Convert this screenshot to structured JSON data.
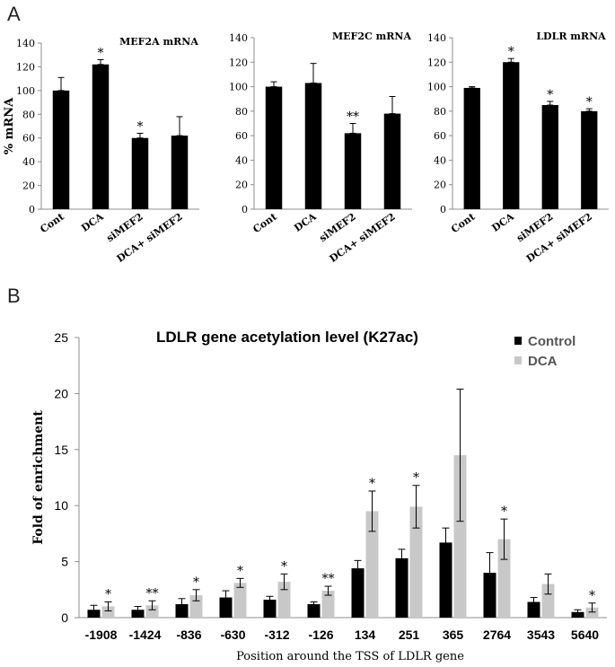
{
  "figure": {
    "panel_a_label": "A",
    "panel_b_label": "B"
  },
  "colors": {
    "control": "#000000",
    "dca": "#c8c8c8",
    "axis": "#8c8c8c"
  },
  "chart_data": [
    {
      "type": "bar",
      "title": "MEF2A mRNA",
      "ylabel": "% mRNA",
      "xlabel": "",
      "ylim": [
        0,
        140
      ],
      "yticks": [
        0,
        20,
        40,
        60,
        80,
        100,
        120,
        140
      ],
      "categories": [
        "Cont",
        "DCA",
        "siMEF2",
        "DCA+ siMEF2"
      ],
      "values": [
        100,
        122,
        60,
        62
      ],
      "errors": [
        11,
        4,
        4,
        16
      ],
      "significance": [
        "",
        "*",
        "*",
        ""
      ]
    },
    {
      "type": "bar",
      "title": "MEF2C mRNA",
      "ylabel": "",
      "xlabel": "",
      "ylim": [
        0,
        140
      ],
      "yticks": [
        0,
        20,
        40,
        60,
        80,
        100,
        120,
        140
      ],
      "categories": [
        "Cont",
        "DCA",
        "siMEF2",
        "DCA+ siMEF2"
      ],
      "values": [
        100,
        103,
        62,
        78
      ],
      "errors": [
        4,
        16,
        8,
        14
      ],
      "significance": [
        "",
        "",
        "**",
        ""
      ]
    },
    {
      "type": "bar",
      "title": "LDLR mRNA",
      "ylabel": "",
      "xlabel": "",
      "ylim": [
        0,
        140
      ],
      "yticks": [
        0,
        20,
        40,
        60,
        80,
        100,
        120,
        140
      ],
      "categories": [
        "Cont",
        "DCA",
        "siMEF2",
        "DCA+ siMEF2"
      ],
      "values": [
        99,
        120,
        85,
        80
      ],
      "errors": [
        1,
        3,
        3,
        2
      ],
      "significance": [
        "",
        "*",
        "*",
        "*"
      ]
    },
    {
      "type": "bar",
      "title": "LDLR gene acetylation level (K27ac)",
      "xlabel": "Position around the TSS of LDLR gene",
      "ylabel": "Fold of enrichment",
      "ylim": [
        0,
        25
      ],
      "yticks": [
        0,
        5,
        10,
        15,
        20,
        25
      ],
      "legend_position": "top-right",
      "categories": [
        "-1908",
        "-1424",
        "-836",
        "-630",
        "-312",
        "-126",
        "134",
        "251",
        "365",
        "2764",
        "3543",
        "5640"
      ],
      "series": [
        {
          "name": "Control",
          "values": [
            0.7,
            0.7,
            1.2,
            1.8,
            1.6,
            1.2,
            4.4,
            5.3,
            6.7,
            4.0,
            1.4,
            0.5
          ],
          "errors": [
            0.4,
            0.3,
            0.5,
            0.6,
            0.3,
            0.2,
            0.7,
            0.8,
            1.3,
            1.8,
            0.4,
            0.2
          ]
        },
        {
          "name": "DCA",
          "values": [
            1.0,
            1.1,
            2.0,
            3.1,
            3.2,
            2.4,
            9.5,
            9.9,
            14.5,
            7.0,
            3.0,
            0.9
          ],
          "errors": [
            0.4,
            0.4,
            0.5,
            0.4,
            0.7,
            0.4,
            1.8,
            1.9,
            5.9,
            1.8,
            0.9,
            0.4
          ]
        }
      ],
      "significance": [
        "*",
        "**",
        "*",
        "*",
        "*",
        "**",
        "*",
        "*",
        "",
        "*",
        "",
        "*"
      ]
    }
  ]
}
